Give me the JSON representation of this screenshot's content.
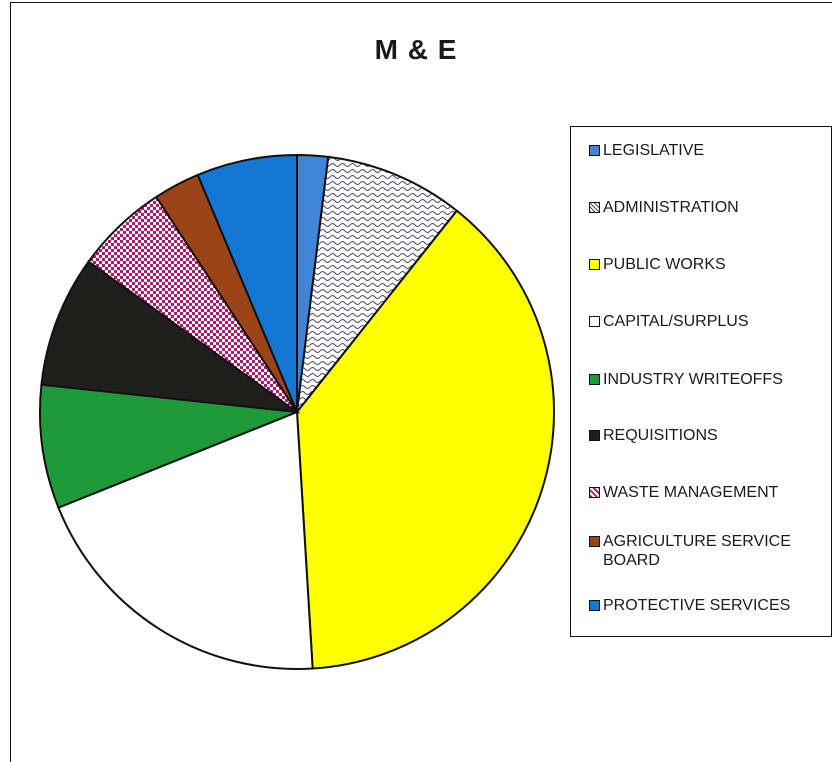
{
  "chart_data": {
    "type": "pie",
    "title": "M & E",
    "legend_position": "right",
    "categories": [
      "LEGISLATIVE",
      "ADMINISTRATION",
      "PUBLIC WORKS",
      "CAPITAL/SURPLUS",
      "INDUSTRY WRITEOFFS",
      "REQUISITIONS",
      "WASTE MANAGEMENT",
      "AGRICULTURE SERVICE BOARD",
      "PROTECTIVE SERVICES"
    ],
    "values": [
      2,
      9,
      39.5,
      20.5,
      8,
      8.5,
      6,
      3,
      6.5
    ],
    "colors": [
      "#3f86d6",
      "#ffffff",
      "#ffff00",
      "#ffffff",
      "#1f9a3b",
      "#1f1f1c",
      "#ffffff",
      "#9a4418",
      "#1477d4"
    ],
    "patterns": [
      "solid",
      "wave",
      "solid",
      "solid",
      "solid",
      "solid",
      "checker-pink",
      "solid",
      "solid"
    ],
    "legend_labels": [
      "LEGISLATIVE",
      "ADMINISTRATION",
      "PUBLIC WORKS",
      "CAPITAL/SURPLUS",
      "INDUSTRY WRITEOFFS",
      "REQUISITIONS",
      "WASTE MANAGEMENT",
      "AGRICULTURE SERVICE BOARD",
      "PROTECTIVE SERVICES"
    ]
  }
}
